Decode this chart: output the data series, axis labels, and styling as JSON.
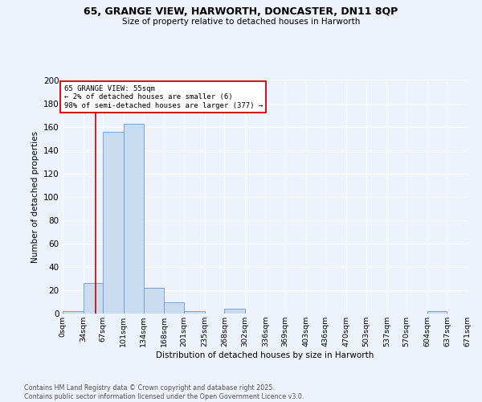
{
  "title": "65, GRANGE VIEW, HARWORTH, DONCASTER, DN11 8QP",
  "subtitle": "Size of property relative to detached houses in Harworth",
  "xlabel": "Distribution of detached houses by size in Harworth",
  "ylabel": "Number of detached properties",
  "bar_color": "#c9dcf0",
  "bar_edge_color": "#6699cc",
  "background_color": "#eef2fb",
  "grid_color": "#ffffff",
  "bins": [
    0,
    34,
    67,
    101,
    134,
    168,
    201,
    235,
    268,
    302,
    336,
    369,
    403,
    436,
    470,
    503,
    537,
    570,
    604,
    637,
    671
  ],
  "counts": [
    2,
    26,
    156,
    163,
    22,
    10,
    2,
    0,
    4,
    0,
    0,
    0,
    0,
    0,
    0,
    0,
    0,
    0,
    2,
    0
  ],
  "property_size": 55,
  "vline_color": "#cc0000",
  "annotation_text": "65 GRANGE VIEW: 55sqm\n← 2% of detached houses are smaller (6)\n98% of semi-detached houses are larger (377) →",
  "annotation_box_color": "#ffffff",
  "annotation_box_edge": "#cc0000",
  "ylim": [
    0,
    200
  ],
  "yticks": [
    0,
    20,
    40,
    60,
    80,
    100,
    120,
    140,
    160,
    180,
    200
  ],
  "footer": "Contains HM Land Registry data © Crown copyright and database right 2025.\nContains public sector information licensed under the Open Government Licence v3.0.",
  "tick_labels": [
    "0sqm",
    "34sqm",
    "67sqm",
    "101sqm",
    "134sqm",
    "168sqm",
    "201sqm",
    "235sqm",
    "268sqm",
    "302sqm",
    "336sqm",
    "369sqm",
    "403sqm",
    "436sqm",
    "470sqm",
    "503sqm",
    "537sqm",
    "570sqm",
    "604sqm",
    "637sqm",
    "671sqm"
  ]
}
